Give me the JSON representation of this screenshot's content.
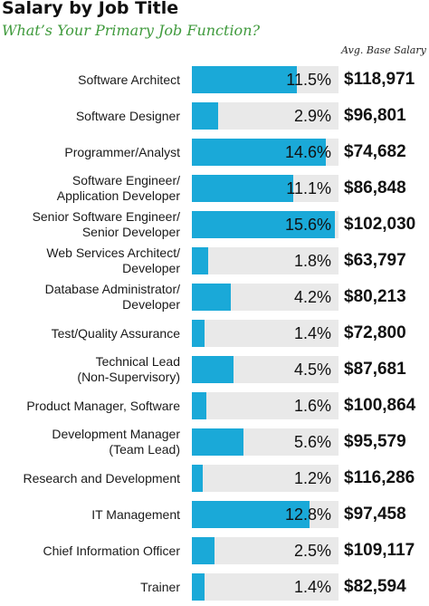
{
  "chart_data": {
    "type": "bar",
    "title": "Salary by Job Title",
    "subtitle": "What’s Your Primary Job Function?",
    "salary_header": "Avg. Base Salary",
    "xlim": [
      0,
      16
    ],
    "colors": {
      "bar": "#1aa9d8",
      "track": "#e9e9e9"
    },
    "categories": [
      [
        "Software Architect"
      ],
      [
        "Software Designer"
      ],
      [
        "Programmer/Analyst"
      ],
      [
        "Software Engineer/",
        "Application Developer"
      ],
      [
        "Senior Software Engineer/",
        "Senior Developer"
      ],
      [
        "Web Services Architect/",
        "Developer"
      ],
      [
        "Database Administrator/",
        "Developer"
      ],
      [
        "Test/Quality Assurance"
      ],
      [
        "Technical Lead",
        "(Non-Supervisory)"
      ],
      [
        "Product Manager, Software"
      ],
      [
        "Development Manager",
        "(Team Lead)"
      ],
      [
        "Research and Development"
      ],
      [
        "IT Management"
      ],
      [
        "Chief Information Officer"
      ],
      [
        "Trainer"
      ]
    ],
    "values": [
      11.5,
      2.9,
      14.6,
      11.1,
      15.6,
      1.8,
      4.2,
      1.4,
      4.5,
      1.6,
      5.6,
      1.2,
      12.8,
      2.5,
      1.4
    ],
    "value_labels": [
      "11.5%",
      "2.9%",
      "14.6%",
      "11.1%",
      "15.6%",
      "1.8%",
      "4.2%",
      "1.4%",
      "4.5%",
      "1.6%",
      "5.6%",
      "1.2%",
      "12.8%",
      "2.5%",
      "1.4%"
    ],
    "salaries": [
      "$118,971",
      "$96,801",
      "$74,682",
      "$86,848",
      "$102,030",
      "$63,797",
      "$80,213",
      "$72,800",
      "$87,681",
      "$100,864",
      "$95,579",
      "$116,286",
      "$97,458",
      "$109,117",
      "$82,594"
    ]
  }
}
